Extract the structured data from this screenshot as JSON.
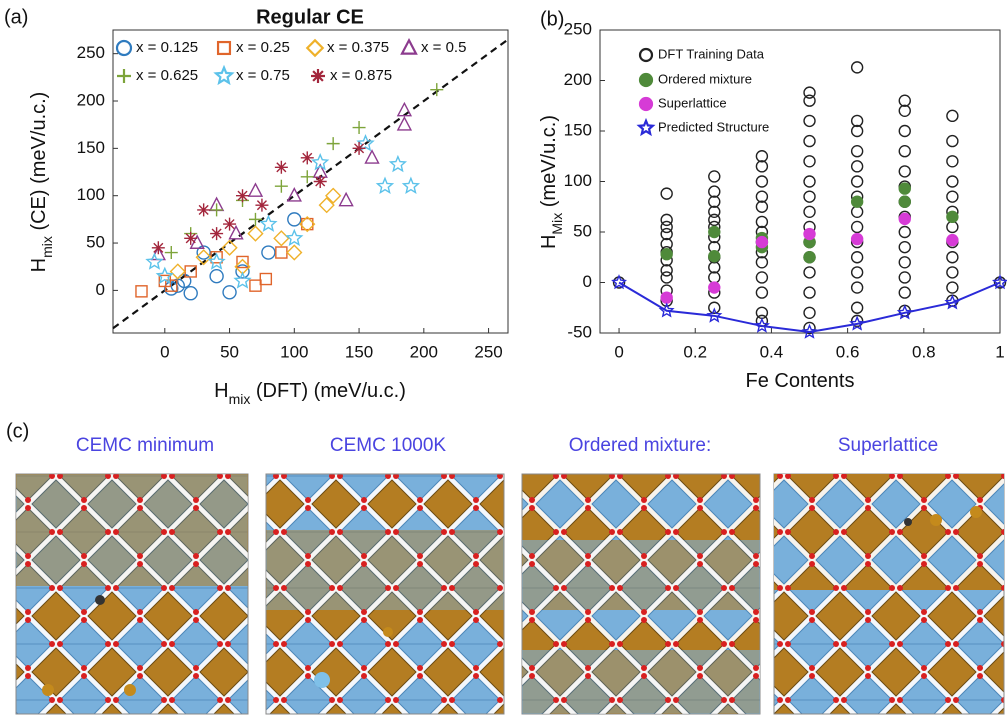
{
  "chart_data": [
    {
      "type": "scatter",
      "panel_label": "(a)",
      "title": "Regular CE",
      "xlabel_parts": [
        "H",
        "mix",
        " (DFT) (meV/u.c.)"
      ],
      "ylabel_parts": [
        "H",
        "mix",
        " (CE) (meV/u.c.)"
      ],
      "xlim": [
        -40,
        265
      ],
      "ylim": [
        -45,
        275
      ],
      "xticks": [
        0,
        50,
        100,
        150,
        200,
        250
      ],
      "yticks": [
        0,
        50,
        100,
        150,
        200,
        250
      ],
      "diagonal": true,
      "series": [
        {
          "name": "x = 0.125",
          "marker": "circle",
          "color": "#2f7bbf",
          "filled": false,
          "x": [
            50,
            20,
            60,
            10,
            5,
            30,
            40,
            80,
            100,
            15
          ],
          "values": [
            -2,
            -3,
            20,
            5,
            2,
            40,
            15,
            40,
            75,
            10
          ]
        },
        {
          "name": "x = 0.25",
          "marker": "square",
          "color": "#e0652b",
          "filled": false,
          "x": [
            -18,
            5,
            70,
            78,
            90,
            60,
            20,
            110,
            40,
            0
          ],
          "values": [
            -1,
            5,
            5,
            12,
            40,
            30,
            20,
            70,
            35,
            10
          ]
        },
        {
          "name": "x = 0.375",
          "marker": "diamond",
          "color": "#efb12a",
          "filled": false,
          "x": [
            10,
            30,
            50,
            70,
            90,
            110,
            125,
            130,
            60,
            100
          ],
          "values": [
            20,
            35,
            45,
            60,
            55,
            70,
            90,
            100,
            25,
            40
          ]
        },
        {
          "name": "x = 0.5",
          "marker": "triangle",
          "color": "#8c3b8e",
          "filled": false,
          "x": [
            185,
            185,
            160,
            120,
            70,
            40,
            25,
            -5,
            100,
            140,
            55
          ],
          "values": [
            190,
            175,
            140,
            125,
            105,
            90,
            50,
            38,
            100,
            95,
            60
          ]
        },
        {
          "name": "x = 0.625",
          "marker": "plus",
          "color": "#7da43a",
          "filled": false,
          "x": [
            210,
            150,
            130,
            90,
            60,
            40,
            20,
            5,
            110,
            70
          ],
          "values": [
            212,
            172,
            155,
            110,
            95,
            85,
            60,
            40,
            120,
            75
          ]
        },
        {
          "name": "x = 0.75",
          "marker": "star",
          "color": "#5cc2ea",
          "filled": false,
          "x": [
            180,
            155,
            170,
            190,
            120,
            80,
            40,
            0,
            -8,
            100,
            60
          ],
          "values": [
            133,
            155,
            110,
            110,
            135,
            70,
            30,
            15,
            30,
            55,
            10
          ]
        },
        {
          "name": "x = 0.875",
          "marker": "asterisk",
          "color": "#a3263c",
          "filled": false,
          "x": [
            150,
            110,
            120,
            90,
            60,
            50,
            20,
            -5,
            30,
            75,
            40
          ],
          "values": [
            150,
            140,
            115,
            130,
            100,
            70,
            55,
            45,
            85,
            90,
            60
          ]
        }
      ]
    },
    {
      "type": "scatter",
      "panel_label": "(b)",
      "xlabel_parts": [
        "Fe Contents"
      ],
      "ylabel_parts": [
        "H",
        "Mix",
        " (meV/u.c.)"
      ],
      "xlim": [
        -0.05,
        1
      ],
      "ylim": [
        -50,
        250
      ],
      "xticks": [
        0,
        0.2,
        0.4,
        0.6,
        0.8,
        1
      ],
      "yticks": [
        -50,
        0,
        50,
        100,
        150,
        200,
        250
      ],
      "diagonal": false,
      "series": [
        {
          "name": "DFT Training Data",
          "marker": "circle",
          "color": "#222222",
          "filled": false,
          "x": [
            0,
            1,
            0.125,
            0.125,
            0.125,
            0.125,
            0.125,
            0.125,
            0.125,
            0.125,
            0.125,
            0.125,
            0.125,
            0.25,
            0.25,
            0.25,
            0.25,
            0.25,
            0.25,
            0.25,
            0.25,
            0.25,
            0.25,
            0.25,
            0.25,
            0.25,
            0.375,
            0.375,
            0.375,
            0.375,
            0.375,
            0.375,
            0.375,
            0.375,
            0.375,
            0.375,
            0.375,
            0.375,
            0.375,
            0.375,
            0.5,
            0.5,
            0.5,
            0.5,
            0.5,
            0.5,
            0.5,
            0.5,
            0.5,
            0.5,
            0.5,
            0.5,
            0.5,
            0.5,
            0.5,
            0.625,
            0.625,
            0.625,
            0.625,
            0.625,
            0.625,
            0.625,
            0.625,
            0.625,
            0.625,
            0.625,
            0.625,
            0.625,
            0.625,
            0.625,
            0.75,
            0.75,
            0.75,
            0.75,
            0.75,
            0.75,
            0.75,
            0.75,
            0.75,
            0.75,
            0.75,
            0.75,
            0.75,
            0.75,
            0.875,
            0.875,
            0.875,
            0.875,
            0.875,
            0.875,
            0.875,
            0.875,
            0.875,
            0.875,
            0.875,
            0.875
          ],
          "values": [
            0,
            0,
            88,
            62,
            55,
            48,
            38,
            30,
            22,
            12,
            5,
            -8,
            -18,
            105,
            90,
            80,
            70,
            62,
            55,
            45,
            35,
            25,
            15,
            5,
            -10,
            -25,
            125,
            115,
            100,
            85,
            75,
            60,
            50,
            40,
            30,
            20,
            5,
            -10,
            -30,
            -38,
            188,
            180,
            160,
            140,
            120,
            100,
            85,
            70,
            55,
            40,
            25,
            10,
            -10,
            -30,
            -45,
            213,
            160,
            150,
            130,
            115,
            100,
            85,
            70,
            55,
            40,
            25,
            10,
            -5,
            -25,
            -38,
            180,
            170,
            150,
            130,
            110,
            95,
            80,
            65,
            50,
            35,
            20,
            5,
            -10,
            -28,
            165,
            140,
            120,
            100,
            85,
            70,
            55,
            40,
            25,
            10,
            -5,
            -18
          ]
        },
        {
          "name": "Ordered mixture",
          "marker": "circle",
          "color": "#4f8a3a",
          "filled": true,
          "x": [
            0.125,
            0.25,
            0.25,
            0.375,
            0.375,
            0.5,
            0.5,
            0.625,
            0.75,
            0.75,
            0.875
          ],
          "values": [
            28,
            50,
            26,
            44,
            35,
            40,
            25,
            80,
            93,
            80,
            65
          ]
        },
        {
          "name": "Superlattice",
          "marker": "circle",
          "color": "#d63bd6",
          "filled": true,
          "x": [
            0.125,
            0.25,
            0.375,
            0.5,
            0.625,
            0.75,
            0.875
          ],
          "values": [
            -15,
            -5,
            40,
            48,
            43,
            63,
            42
          ]
        },
        {
          "name": "Predicted Structure",
          "marker": "star",
          "color": "#2a2ad8",
          "filled": false,
          "line": true,
          "x": [
            0,
            0.125,
            0.25,
            0.375,
            0.5,
            0.625,
            0.75,
            0.875,
            1
          ],
          "values": [
            0,
            -28,
            -33,
            -43,
            -49,
            -41,
            -30,
            -20,
            0
          ]
        }
      ]
    }
  ],
  "structures": {
    "panel_label": "(c)",
    "titles": [
      "CEMC minimum",
      "CEMC 1000K",
      "Ordered mixture:",
      "Superlattice"
    ]
  }
}
